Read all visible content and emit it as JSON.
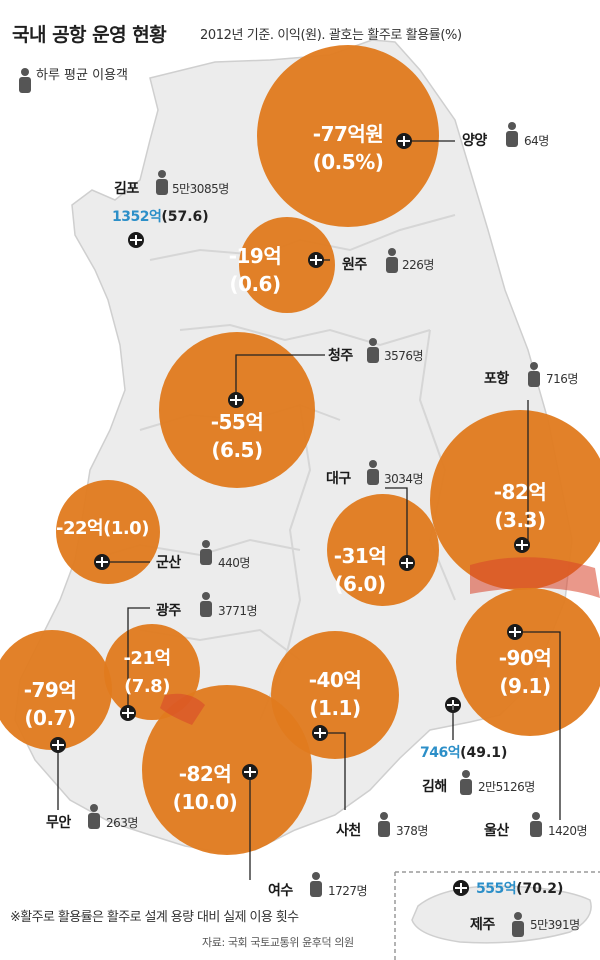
{
  "header": {
    "title": "국내 공항 운영 현황",
    "subtitle": "2012년 기준. 이익(원). 괄호는 활주로 활용률(%)"
  },
  "legend": {
    "label": "하루 평균 이용객"
  },
  "colors": {
    "deficit_bubble": "#e07a1e",
    "profit_text": "#2c8fc8",
    "map_land": "#ececec"
  },
  "airports": [
    {
      "id": "yangyang",
      "name": "양양",
      "profit": "-77억원",
      "utilization": "(0.5%)",
      "daily_passengers": "64명"
    },
    {
      "id": "gimpo",
      "name": "김포",
      "profit": "1352억",
      "utilization": "(57.6)",
      "daily_passengers": "5만3085명"
    },
    {
      "id": "wonju",
      "name": "원주",
      "profit": "-19억",
      "utilization": "(0.6)",
      "daily_passengers": "226명"
    },
    {
      "id": "cheongju",
      "name": "청주",
      "profit": "-55억",
      "utilization": "(6.5)",
      "daily_passengers": "3576명"
    },
    {
      "id": "pohang",
      "name": "포항",
      "profit": "-82억",
      "utilization": "(3.3)",
      "daily_passengers": "716명"
    },
    {
      "id": "daegu",
      "name": "대구",
      "profit": "-31억",
      "utilization": "(6.0)",
      "daily_passengers": "3034명"
    },
    {
      "id": "gunsan",
      "name": "군산",
      "profit": "-22억",
      "utilization": "(1.0)",
      "daily_passengers": "440명"
    },
    {
      "id": "gwangju",
      "name": "광주",
      "profit": "-21억",
      "utilization": "(7.8)",
      "daily_passengers": "3771명"
    },
    {
      "id": "muan",
      "name": "무안",
      "profit": "-79억",
      "utilization": "(0.7)",
      "daily_passengers": "263명"
    },
    {
      "id": "ulsan",
      "name": "울산",
      "profit": "-90억",
      "utilization": "(9.1)",
      "daily_passengers": "1420명"
    },
    {
      "id": "sacheon",
      "name": "사천",
      "profit": "-40억",
      "utilization": "(1.1)",
      "daily_passengers": "378명"
    },
    {
      "id": "yeosu",
      "name": "여수",
      "profit": "-82억",
      "utilization": "(10.0)",
      "daily_passengers": "1727명"
    },
    {
      "id": "gimhae",
      "name": "김해",
      "profit": "746억",
      "utilization": "(49.1)",
      "daily_passengers": "2만5126명"
    },
    {
      "id": "jeju",
      "name": "제주",
      "profit": "555억",
      "utilization": "(70.2)",
      "daily_passengers": "5만391명"
    }
  ],
  "footnote": "※활주로 활용률은 활주로 설계 용량 대비 실제 이용 횟수",
  "source": "자료: 국회 국토교통위 윤후덕 의원"
}
